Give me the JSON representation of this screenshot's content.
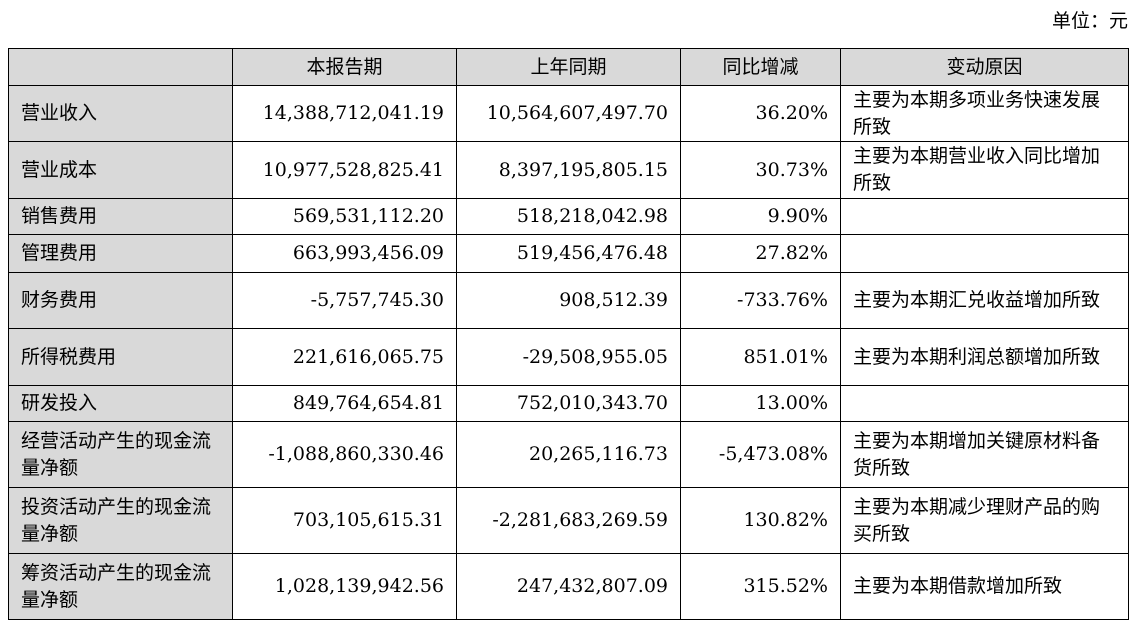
{
  "unit_label": "单位：元",
  "table": {
    "headers": [
      "",
      "本报告期",
      "上年同期",
      "同比增减",
      "变动原因"
    ],
    "rows": [
      {
        "item": "营业收入",
        "current": "14,388,712,041.19",
        "previous": "10,564,607,497.70",
        "yoy": "36.20%",
        "reason": "主要为本期多项业务快速发展所致"
      },
      {
        "item": "营业成本",
        "current": "10,977,528,825.41",
        "previous": "8,397,195,805.15",
        "yoy": "30.73%",
        "reason": "主要为本期营业收入同比增加所致"
      },
      {
        "item": "销售费用",
        "current": "569,531,112.20",
        "previous": "518,218,042.98",
        "yoy": "9.90%",
        "reason": ""
      },
      {
        "item": "管理费用",
        "current": "663,993,456.09",
        "previous": "519,456,476.48",
        "yoy": "27.82%",
        "reason": ""
      },
      {
        "item": "财务费用",
        "current": "-5,757,745.30",
        "previous": "908,512.39",
        "yoy": "-733.76%",
        "reason": "主要为本期汇兑收益增加所致"
      },
      {
        "item": "所得税费用",
        "current": "221,616,065.75",
        "previous": "-29,508,955.05",
        "yoy": "851.01%",
        "reason": "主要为本期利润总额增加所致"
      },
      {
        "item": "研发投入",
        "current": "849,764,654.81",
        "previous": "752,010,343.70",
        "yoy": "13.00%",
        "reason": ""
      },
      {
        "item": "经营活动产生的现金流量净额",
        "current": "-1,088,860,330.46",
        "previous": "20,265,116.73",
        "yoy": "-5,473.08%",
        "reason": "主要为本期增加关键原材料备货所致"
      },
      {
        "item": "投资活动产生的现金流量净额",
        "current": "703,105,615.31",
        "previous": "-2,281,683,269.59",
        "yoy": "130.82%",
        "reason": "主要为本期减少理财产品的购买所致"
      },
      {
        "item": "筹资活动产生的现金流量净额",
        "current": "1,028,139,942.56",
        "previous": "247,432,807.09",
        "yoy": "315.52%",
        "reason": "主要为本期借款增加所致"
      }
    ]
  }
}
